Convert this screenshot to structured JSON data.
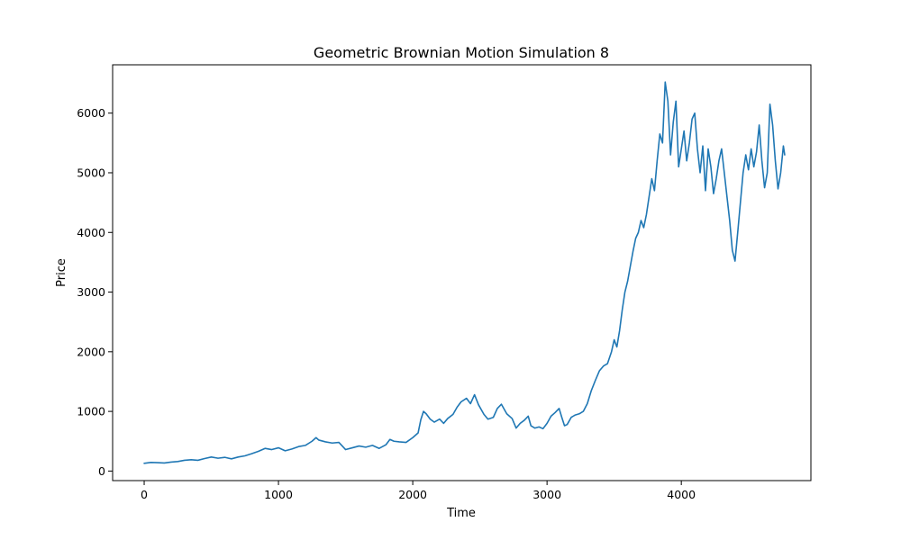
{
  "chart_data": {
    "type": "line",
    "title": "Geometric Brownian Motion Simulation 8",
    "xlabel": "Time",
    "ylabel": "Price",
    "xlim": [
      -235,
      4965
    ],
    "ylim": [
      -160,
      6810
    ],
    "xticks": [
      0,
      1000,
      2000,
      3000,
      4000
    ],
    "yticks": [
      0,
      1000,
      2000,
      3000,
      4000,
      5000,
      6000
    ],
    "grid": false,
    "legend": "none",
    "series": [
      {
        "color": "#1f77b4",
        "points": [
          [
            0,
            130
          ],
          [
            50,
            145
          ],
          [
            100,
            140
          ],
          [
            150,
            135
          ],
          [
            200,
            150
          ],
          [
            250,
            160
          ],
          [
            300,
            180
          ],
          [
            350,
            190
          ],
          [
            400,
            180
          ],
          [
            450,
            210
          ],
          [
            500,
            235
          ],
          [
            550,
            215
          ],
          [
            600,
            230
          ],
          [
            650,
            205
          ],
          [
            700,
            235
          ],
          [
            750,
            255
          ],
          [
            800,
            290
          ],
          [
            850,
            330
          ],
          [
            900,
            380
          ],
          [
            950,
            360
          ],
          [
            1000,
            390
          ],
          [
            1050,
            340
          ],
          [
            1100,
            370
          ],
          [
            1150,
            410
          ],
          [
            1200,
            430
          ],
          [
            1250,
            500
          ],
          [
            1280,
            560
          ],
          [
            1300,
            520
          ],
          [
            1350,
            490
          ],
          [
            1400,
            470
          ],
          [
            1450,
            480
          ],
          [
            1500,
            360
          ],
          [
            1550,
            390
          ],
          [
            1600,
            420
          ],
          [
            1650,
            400
          ],
          [
            1700,
            430
          ],
          [
            1750,
            380
          ],
          [
            1800,
            440
          ],
          [
            1830,
            530
          ],
          [
            1860,
            500
          ],
          [
            1900,
            490
          ],
          [
            1950,
            480
          ],
          [
            2000,
            560
          ],
          [
            2040,
            640
          ],
          [
            2060,
            860
          ],
          [
            2080,
            1000
          ],
          [
            2100,
            960
          ],
          [
            2130,
            870
          ],
          [
            2160,
            820
          ],
          [
            2200,
            870
          ],
          [
            2230,
            800
          ],
          [
            2260,
            880
          ],
          [
            2300,
            950
          ],
          [
            2330,
            1070
          ],
          [
            2360,
            1160
          ],
          [
            2400,
            1220
          ],
          [
            2430,
            1130
          ],
          [
            2460,
            1280
          ],
          [
            2490,
            1110
          ],
          [
            2530,
            950
          ],
          [
            2560,
            870
          ],
          [
            2600,
            900
          ],
          [
            2630,
            1050
          ],
          [
            2660,
            1120
          ],
          [
            2700,
            960
          ],
          [
            2740,
            880
          ],
          [
            2770,
            720
          ],
          [
            2800,
            800
          ],
          [
            2830,
            850
          ],
          [
            2860,
            920
          ],
          [
            2880,
            760
          ],
          [
            2910,
            720
          ],
          [
            2940,
            740
          ],
          [
            2970,
            710
          ],
          [
            3000,
            800
          ],
          [
            3030,
            920
          ],
          [
            3060,
            980
          ],
          [
            3090,
            1050
          ],
          [
            3110,
            900
          ],
          [
            3130,
            760
          ],
          [
            3150,
            780
          ],
          [
            3180,
            900
          ],
          [
            3210,
            940
          ],
          [
            3240,
            960
          ],
          [
            3270,
            1000
          ],
          [
            3300,
            1130
          ],
          [
            3330,
            1350
          ],
          [
            3360,
            1520
          ],
          [
            3390,
            1680
          ],
          [
            3420,
            1760
          ],
          [
            3450,
            1800
          ],
          [
            3480,
            2000
          ],
          [
            3500,
            2200
          ],
          [
            3520,
            2080
          ],
          [
            3540,
            2350
          ],
          [
            3560,
            2700
          ],
          [
            3580,
            3000
          ],
          [
            3600,
            3180
          ],
          [
            3620,
            3430
          ],
          [
            3640,
            3680
          ],
          [
            3660,
            3900
          ],
          [
            3680,
            4000
          ],
          [
            3700,
            4200
          ],
          [
            3720,
            4080
          ],
          [
            3740,
            4300
          ],
          [
            3760,
            4600
          ],
          [
            3780,
            4900
          ],
          [
            3800,
            4700
          ],
          [
            3820,
            5200
          ],
          [
            3840,
            5650
          ],
          [
            3860,
            5500
          ],
          [
            3880,
            6520
          ],
          [
            3900,
            6200
          ],
          [
            3920,
            5300
          ],
          [
            3940,
            5850
          ],
          [
            3960,
            6200
          ],
          [
            3980,
            5100
          ],
          [
            4000,
            5400
          ],
          [
            4020,
            5700
          ],
          [
            4040,
            5200
          ],
          [
            4060,
            5500
          ],
          [
            4080,
            5900
          ],
          [
            4100,
            6000
          ],
          [
            4120,
            5400
          ],
          [
            4140,
            5000
          ],
          [
            4160,
            5450
          ],
          [
            4180,
            4700
          ],
          [
            4200,
            5400
          ],
          [
            4220,
            5100
          ],
          [
            4240,
            4650
          ],
          [
            4260,
            4900
          ],
          [
            4280,
            5200
          ],
          [
            4300,
            5400
          ],
          [
            4320,
            5000
          ],
          [
            4340,
            4600
          ],
          [
            4360,
            4200
          ],
          [
            4380,
            3700
          ],
          [
            4400,
            3520
          ],
          [
            4420,
            4000
          ],
          [
            4440,
            4500
          ],
          [
            4460,
            5000
          ],
          [
            4480,
            5300
          ],
          [
            4500,
            5050
          ],
          [
            4520,
            5400
          ],
          [
            4540,
            5100
          ],
          [
            4560,
            5350
          ],
          [
            4580,
            5800
          ],
          [
            4600,
            5200
          ],
          [
            4620,
            4750
          ],
          [
            4640,
            5000
          ],
          [
            4660,
            6150
          ],
          [
            4680,
            5800
          ],
          [
            4700,
            5200
          ],
          [
            4720,
            4730
          ],
          [
            4740,
            5000
          ],
          [
            4760,
            5450
          ],
          [
            4770,
            5300
          ]
        ]
      }
    ]
  }
}
